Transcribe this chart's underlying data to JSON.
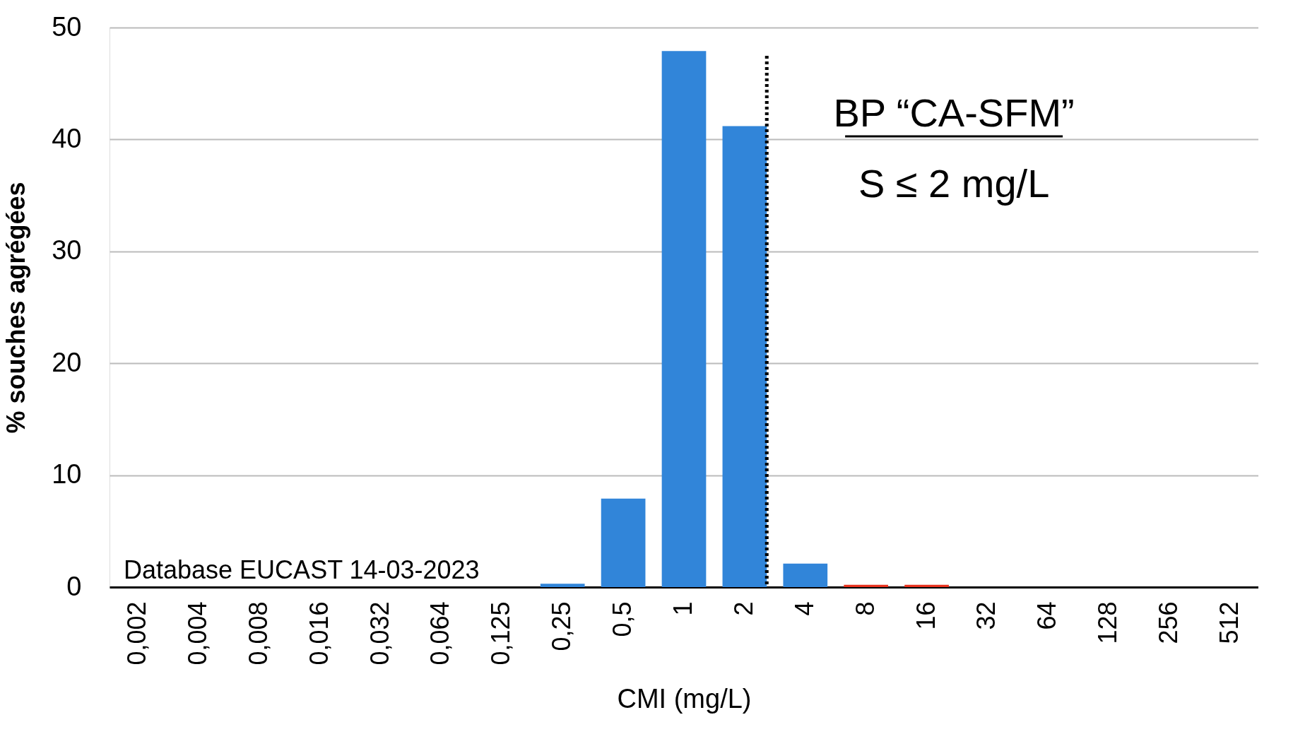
{
  "chart_data": {
    "type": "bar",
    "xlabel": "CMI (mg/L)",
    "ylabel": "% souches agrégées",
    "categories": [
      "0,002",
      "0,004",
      "0,008",
      "0,016",
      "0,032",
      "0,064",
      "0,125",
      "0,25",
      "0,5",
      "1",
      "2",
      "4",
      "8",
      "16",
      "32",
      "64",
      "128",
      "256",
      "512"
    ],
    "values": [
      0,
      0,
      0,
      0,
      0,
      0,
      0,
      0.3,
      7.9,
      47.9,
      41.2,
      2.1,
      0.2,
      0.2,
      0,
      0,
      0,
      0,
      0
    ],
    "colors": [
      "#3185d9",
      "#3185d9",
      "#3185d9",
      "#3185d9",
      "#3185d9",
      "#3185d9",
      "#3185d9",
      "#3185d9",
      "#3185d9",
      "#3185d9",
      "#3185d9",
      "#3185d9",
      "#e8321e",
      "#e8321e",
      "#3185d9",
      "#3185d9",
      "#3185d9",
      "#3185d9",
      "#3185d9"
    ],
    "ylim": [
      0,
      50
    ],
    "yticks": [
      0,
      10,
      20,
      30,
      40,
      50
    ],
    "grid": "y",
    "ref_lines": [
      {
        "axis": "x",
        "value": "2",
        "color": "#000000",
        "line_style": "dotted"
      }
    ],
    "annotations": [
      "BP “CA-SFM”",
      "S ≤ 2 mg/L",
      "Database EUCAST 14-03-2023"
    ]
  }
}
